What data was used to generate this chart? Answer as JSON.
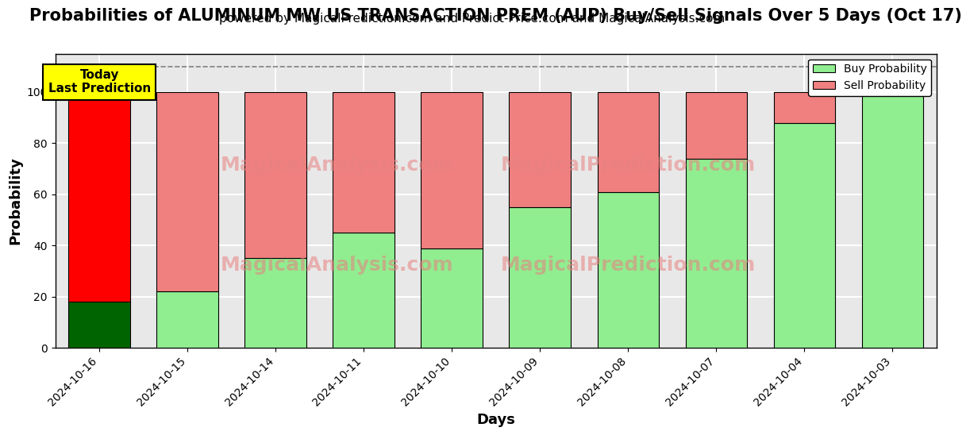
{
  "title": "Probabilities of ALUMINUM MW US TRANSACTION PREM (AUP) Buy/Sell Signals Over 5 Days (Oct 17)",
  "subtitle": "powered by MagicalPrediction.com and Predict-Price.com and MagicalAnalysis.com",
  "xlabel": "Days",
  "ylabel": "Probability",
  "dates": [
    "2024-10-16",
    "2024-10-15",
    "2024-10-14",
    "2024-10-11",
    "2024-10-10",
    "2024-10-09",
    "2024-10-08",
    "2024-10-07",
    "2024-10-04",
    "2024-10-03"
  ],
  "buy_values": [
    18,
    22,
    35,
    45,
    39,
    55,
    61,
    74,
    88,
    100
  ],
  "sell_values": [
    82,
    78,
    65,
    55,
    61,
    45,
    39,
    26,
    12,
    0
  ],
  "buy_colors": [
    "#006400",
    "#90EE90",
    "#90EE90",
    "#90EE90",
    "#90EE90",
    "#90EE90",
    "#90EE90",
    "#90EE90",
    "#90EE90",
    "#90EE90"
  ],
  "sell_colors": [
    "#FF0000",
    "#F08080",
    "#F08080",
    "#F08080",
    "#F08080",
    "#F08080",
    "#F08080",
    "#F08080",
    "#F08080",
    "#F08080"
  ],
  "today_label": "Today\nLast Prediction",
  "today_bg": "#FFFF00",
  "ylim": [
    0,
    115
  ],
  "yticks": [
    0,
    20,
    40,
    60,
    80,
    100
  ],
  "dashed_line_y": 110,
  "legend_buy_color": "#90EE90",
  "legend_sell_color": "#F08080",
  "buy_label": "Buy Probability",
  "sell_label": "Sell Probability",
  "bar_width": 0.7,
  "plot_bg_color": "#e8e8e8",
  "fig_bg_color": "#ffffff",
  "grid_color": "#ffffff",
  "title_fontsize": 15,
  "subtitle_fontsize": 11,
  "axis_label_fontsize": 13,
  "tick_fontsize": 10,
  "watermark1": "MagicalAnalysis.com",
  "watermark2": "MagicalPrediction.com"
}
